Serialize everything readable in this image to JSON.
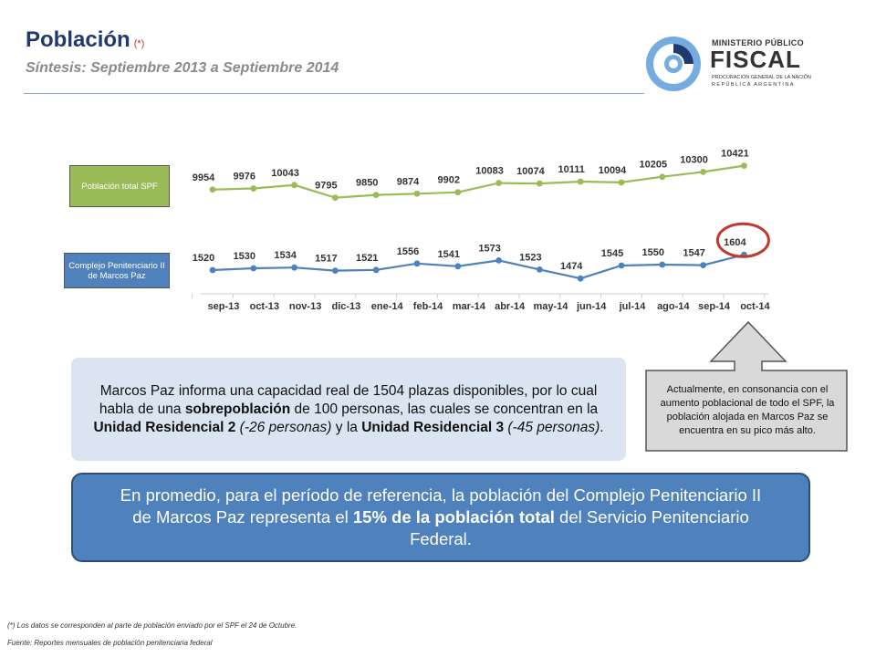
{
  "header": {
    "title": "Población",
    "title_mark": "(*)",
    "subtitle": "Síntesis: Septiembre 2013 a Septiembre 2014"
  },
  "logo": {
    "line1": "MINISTERIO PÚBLICO",
    "line2": "FISCAL",
    "line3": "PROCURACIÓN GENERAL DE LA NACIÓN",
    "line4": "REPÚBLICA ARGENTINA"
  },
  "labels": {
    "total": "Población total SPF",
    "complejo": "Complejo Penitenciario II de Marcos Paz"
  },
  "chart_data": {
    "type": "line",
    "categories": [
      "sep-13",
      "oct-13",
      "nov-13",
      "dic-13",
      "ene-14",
      "feb-14",
      "mar-14",
      "abr-14",
      "may-14",
      "jun-14",
      "jul-14",
      "ago-14",
      "sep-14",
      "oct-14"
    ],
    "series": [
      {
        "name": "Población total SPF",
        "color": "#9bbb59",
        "values": [
          9954,
          9976,
          10043,
          9795,
          9850,
          9874,
          9902,
          10083,
          10074,
          10111,
          10094,
          10205,
          10300,
          10421
        ]
      },
      {
        "name": "Complejo Penitenciario II de Marcos Paz",
        "color": "#4f81bd",
        "values": [
          1520,
          1530,
          1534,
          1517,
          1521,
          1556,
          1541,
          1573,
          1523,
          1474,
          1545,
          1550,
          1547,
          1604
        ]
      }
    ],
    "highlight": {
      "series": 1,
      "index": 13,
      "color": "#c0392b"
    },
    "grid": false,
    "legend": "left"
  },
  "callout": {
    "p1": "Marcos Paz informa una capacidad real de 1504 plazas disponibles, por lo cual habla de una ",
    "b1": "sobrepoblación",
    "p2": " de 100 personas, las cuales se concentran en la ",
    "b2": "Unidad Residencial 2",
    "i1": " (-26 personas)",
    "p3": " y la ",
    "b3": "Unidad Residencial 3",
    "i2": " (-45 personas)",
    "p4": "."
  },
  "arrow_note": "Actualmente, en consonancia con el aumento poblacional de todo el SPF, la población alojada en Marcos Paz se encuentra en su pico más alto.",
  "summary": {
    "p1": "En promedio, para el período de referencia, la población del Complejo Penitenciario II de Marcos Paz representa el ",
    "b1": "15% de la población total",
    "p2": " del Servicio Penitenciario Federal."
  },
  "footnotes": {
    "note": "(*) Los datos se corresponden al parte de población enviado por el SPF el 24 de Octubre.",
    "source": "Fuente: Reportes mensuales de población penitenciaria federal"
  }
}
